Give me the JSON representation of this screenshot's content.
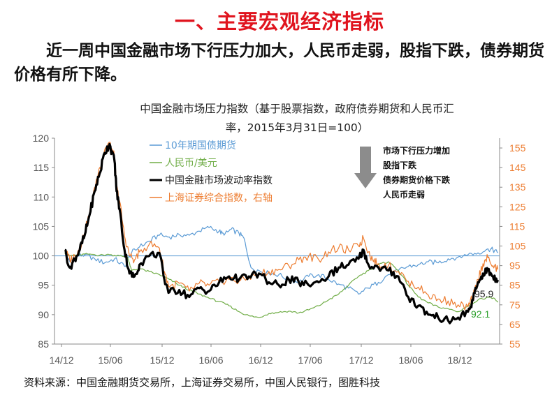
{
  "heading": "一、主要宏观经济指标",
  "intro": "近一周中国金融市场下行压力加大，人民币走弱，股指下跌，债券期货价格有所下降。",
  "source": "资料来源：中国金融期货交易所，上海证券交易所，中国人民银行，图胜科技",
  "chart_data": {
    "type": "line",
    "title_line1": "中国金融市场压力指数（基于股票指数，政府债券期货和人民币汇",
    "title_line2": "率，2015年3月31日=100）",
    "x_ticks": [
      "14/12",
      "15/06",
      "15/12",
      "16/06",
      "16/12",
      "17/06",
      "17/12",
      "18/06",
      "18/12"
    ],
    "x_range": [
      "2014-12",
      "2019-04"
    ],
    "y_left": {
      "min": 85,
      "max": 120,
      "ticks": [
        85,
        90,
        95,
        100,
        105,
        110,
        115,
        120
      ]
    },
    "y_right": {
      "min": 55,
      "max": 160,
      "ticks": [
        55,
        65,
        75,
        85,
        95,
        105,
        115,
        125,
        135,
        145,
        155
      ]
    },
    "reference_line": 100,
    "grid": false,
    "legend_position": "top-left",
    "annotation": {
      "arrow_direction": "down",
      "lines": [
        "市场下行压力增加",
        "股指下跌",
        "债券期货价格下跌",
        "人民币走弱"
      ]
    },
    "end_labels": [
      {
        "series": "中国金融市场波动率指数",
        "text": "95.9",
        "color": "#222222"
      },
      {
        "series": "人民币/美元",
        "text": "92.1",
        "color": "#2ca02c"
      }
    ],
    "series": [
      {
        "name": "10年期国债期货",
        "axis": "left",
        "color": "#5b9bd5",
        "width": 1.2,
        "x": [
          2014.95,
          2015.0,
          2015.08,
          2015.15,
          2015.25,
          2015.35,
          2015.45,
          2015.55,
          2015.62,
          2015.7,
          2015.8,
          2015.9,
          2016.0,
          2016.1,
          2016.2,
          2016.3,
          2016.4,
          2016.5,
          2016.55,
          2016.62,
          2016.7,
          2016.75,
          2016.82,
          2016.9,
          2017.0,
          2017.1,
          2017.2,
          2017.3,
          2017.4,
          2017.5,
          2017.6,
          2017.7,
          2017.8,
          2017.9,
          2018.0,
          2018.1,
          2018.2,
          2018.3,
          2018.4,
          2018.5,
          2018.6,
          2018.7,
          2018.8,
          2018.9,
          2019.0,
          2019.1,
          2019.2,
          2019.25,
          2019.3
        ],
        "values": [
          100.5,
          99.0,
          100.0,
          100.2,
          99.5,
          98.8,
          99.5,
          98.2,
          100.5,
          101.5,
          102.5,
          103.5,
          103.2,
          103.6,
          103.5,
          104.2,
          104.8,
          104.2,
          103.5,
          104.5,
          103.8,
          103.0,
          98.0,
          97.5,
          97.0,
          96.8,
          96.0,
          95.5,
          96.5,
          96.8,
          96.0,
          95.2,
          94.5,
          93.5,
          94.5,
          95.5,
          96.8,
          97.5,
          98.2,
          98.5,
          99.0,
          98.8,
          99.5,
          99.8,
          100.2,
          100.5,
          101.2,
          101.0,
          100.5
        ]
      },
      {
        "name": "人民币/美元",
        "axis": "left",
        "color": "#70ad47",
        "width": 1.2,
        "x": [
          2014.95,
          2015.0,
          2015.1,
          2015.2,
          2015.3,
          2015.4,
          2015.5,
          2015.58,
          2015.62,
          2015.7,
          2015.8,
          2015.9,
          2016.0,
          2016.1,
          2016.2,
          2016.3,
          2016.4,
          2016.5,
          2016.6,
          2016.7,
          2016.8,
          2016.9,
          2017.0,
          2017.1,
          2017.2,
          2017.3,
          2017.4,
          2017.5,
          2017.6,
          2017.7,
          2017.8,
          2017.9,
          2018.0,
          2018.1,
          2018.2,
          2018.3,
          2018.4,
          2018.5,
          2018.6,
          2018.7,
          2018.8,
          2018.9,
          2019.0,
          2019.1,
          2019.2,
          2019.25,
          2019.3
        ],
        "values": [
          100.5,
          100.0,
          100.2,
          100.3,
          100.1,
          100.2,
          100.0,
          99.8,
          97.5,
          97.8,
          97.3,
          96.8,
          96.0,
          95.0,
          94.2,
          93.5,
          92.8,
          92.2,
          91.5,
          90.5,
          89.8,
          89.5,
          90.2,
          90.4,
          90.6,
          90.3,
          90.8,
          91.5,
          92.5,
          93.5,
          95.0,
          96.5,
          97.5,
          98.5,
          99.0,
          97.5,
          95.0,
          93.0,
          92.0,
          91.3,
          91.0,
          90.5,
          91.5,
          92.5,
          93.0,
          92.8,
          92.1
        ]
      },
      {
        "name": "上海证券综合指数，右轴",
        "axis": "right",
        "color": "#ed7d31",
        "width": 1.2,
        "x": [
          2014.95,
          2015.0,
          2015.05,
          2015.1,
          2015.15,
          2015.2,
          2015.25,
          2015.3,
          2015.35,
          2015.4,
          2015.45,
          2015.47,
          2015.5,
          2015.55,
          2015.6,
          2015.65,
          2015.7,
          2015.8,
          2015.9,
          2015.95,
          2016.0,
          2016.1,
          2016.2,
          2016.3,
          2016.4,
          2016.5,
          2016.6,
          2016.7,
          2016.8,
          2016.9,
          2017.0,
          2017.1,
          2017.2,
          2017.3,
          2017.4,
          2017.5,
          2017.6,
          2017.7,
          2017.8,
          2017.9,
          2017.95,
          2018.0,
          2018.05,
          2018.1,
          2018.2,
          2018.3,
          2018.4,
          2018.5,
          2018.6,
          2018.7,
          2018.8,
          2018.9,
          2019.0,
          2019.05,
          2019.1,
          2019.15,
          2019.2,
          2019.25,
          2019.3
        ],
        "values": [
          103,
          98,
          100,
          104,
          112,
          122,
          135,
          145,
          154,
          158,
          150,
          135,
          128,
          110,
          100,
          98,
          102,
          106,
          104,
          92,
          84,
          86,
          82,
          86,
          85,
          87,
          88,
          87,
          89,
          91,
          92,
          93,
          95,
          98,
          100,
          98,
          102,
          104,
          103,
          105,
          109,
          102,
          97,
          96,
          95,
          92,
          87,
          84,
          80,
          78,
          77,
          75,
          74,
          79,
          88,
          96,
          99,
          95,
          93
        ]
      },
      {
        "name": "中国金融市场波动率指数",
        "axis": "left",
        "color": "#000000",
        "width": 3.2,
        "x": [
          2014.95,
          2015.0,
          2015.05,
          2015.1,
          2015.15,
          2015.2,
          2015.25,
          2015.3,
          2015.35,
          2015.4,
          2015.45,
          2015.47,
          2015.5,
          2015.55,
          2015.6,
          2015.65,
          2015.7,
          2015.8,
          2015.9,
          2015.95,
          2016.0,
          2016.1,
          2016.2,
          2016.3,
          2016.4,
          2016.5,
          2016.6,
          2016.7,
          2016.8,
          2016.9,
          2017.0,
          2017.1,
          2017.2,
          2017.3,
          2017.4,
          2017.5,
          2017.6,
          2017.7,
          2017.8,
          2017.9,
          2017.95,
          2018.0,
          2018.1,
          2018.2,
          2018.3,
          2018.4,
          2018.5,
          2018.6,
          2018.7,
          2018.8,
          2018.9,
          2019.0,
          2019.05,
          2019.1,
          2019.15,
          2019.2,
          2019.25,
          2019.3
        ],
        "values": [
          101,
          98,
          99.5,
          101,
          103.5,
          107,
          111,
          114,
          117.5,
          119,
          116,
          111,
          108,
          101,
          97,
          96.5,
          98.5,
          100,
          100.5,
          96,
          93.8,
          94.2,
          93.0,
          94.5,
          94.0,
          95.5,
          96.5,
          96.0,
          96.5,
          97.0,
          95.5,
          95.0,
          96.0,
          95.5,
          95.0,
          95.5,
          96.5,
          98.0,
          98.5,
          99.5,
          101.0,
          98.5,
          98.0,
          97.5,
          96.5,
          93.0,
          91.5,
          90.0,
          89.5,
          89.0,
          89.5,
          90.5,
          92.5,
          95.5,
          97.0,
          97.5,
          96.5,
          95.9
        ]
      }
    ]
  }
}
